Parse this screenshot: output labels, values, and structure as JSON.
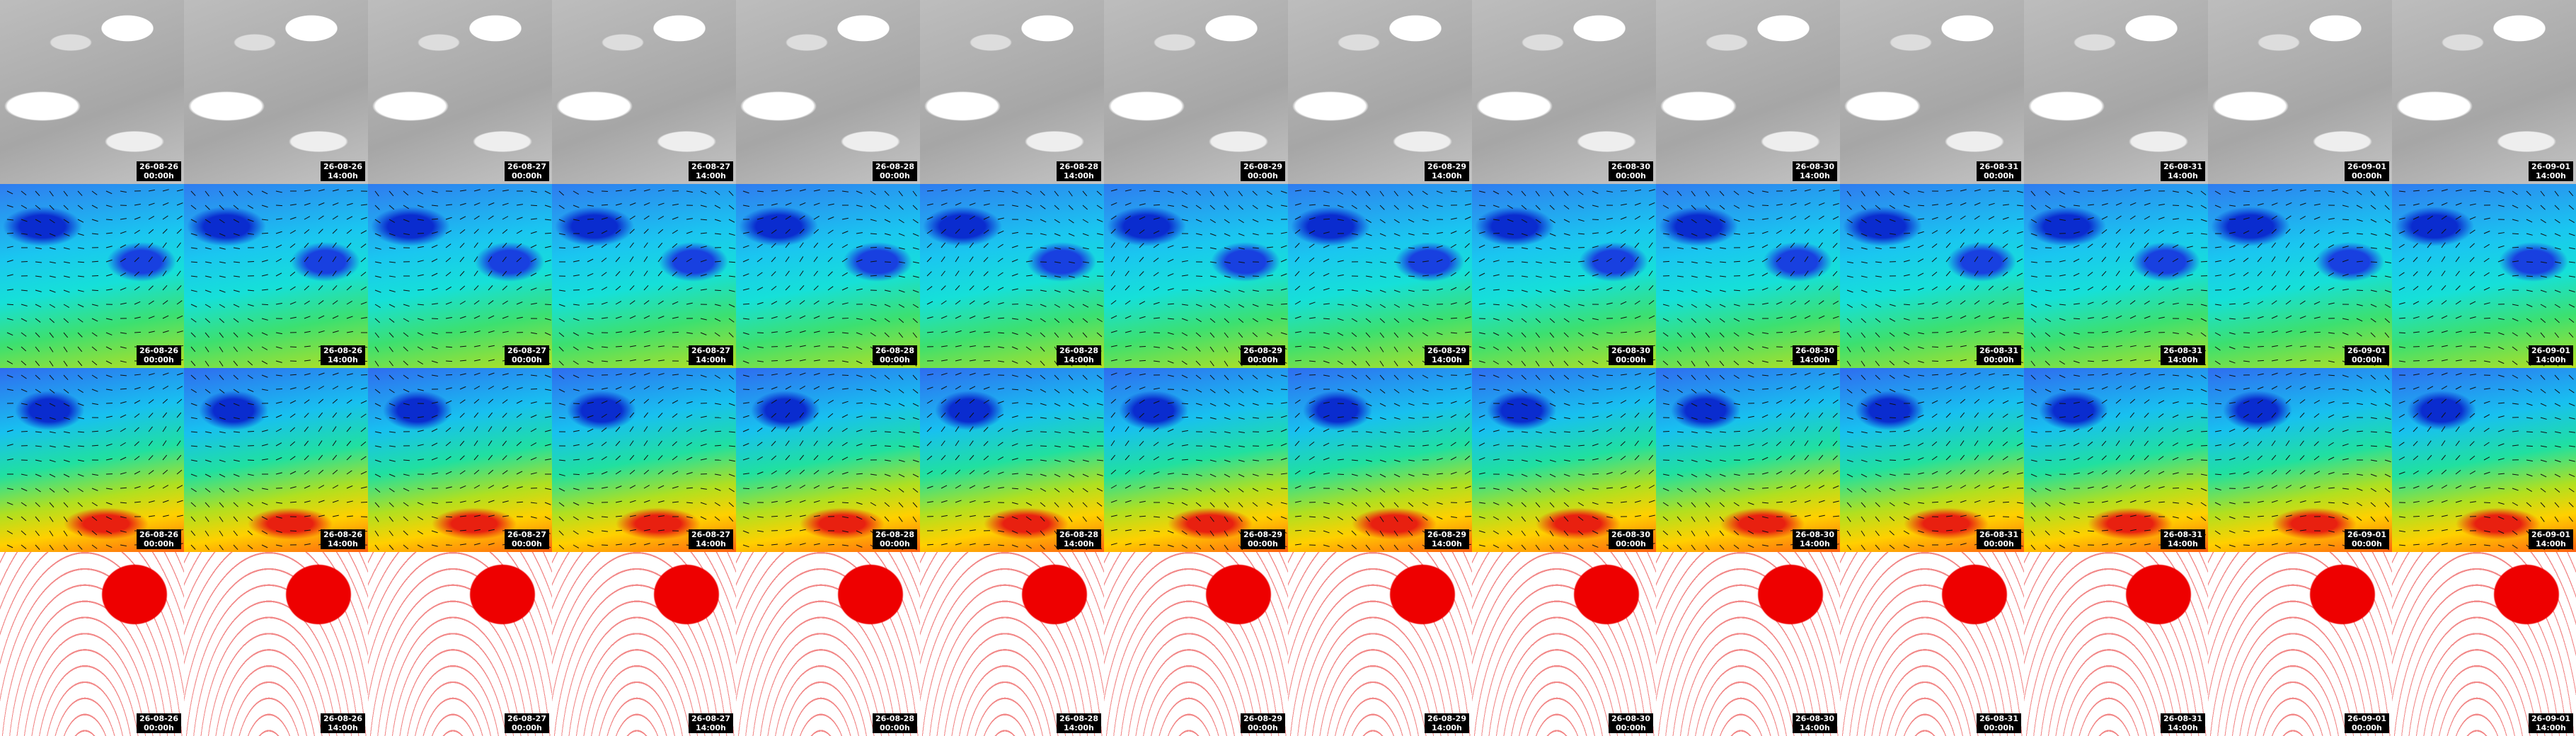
{
  "columns": [
    {
      "date": "26-08-26",
      "time": "00:00h"
    },
    {
      "date": "26-08-26",
      "time": "14:00h"
    },
    {
      "date": "26-08-27",
      "time": "00:00h"
    },
    {
      "date": "26-08-27",
      "time": "14:00h"
    },
    {
      "date": "26-08-28",
      "time": "00:00h"
    },
    {
      "date": "26-08-28",
      "time": "14:00h"
    },
    {
      "date": "26-08-29",
      "time": "00:00h"
    },
    {
      "date": "26-08-29",
      "time": "14:00h"
    },
    {
      "date": "26-08-30",
      "time": "00:00h"
    },
    {
      "date": "26-08-30",
      "time": "14:00h"
    },
    {
      "date": "26-08-31",
      "time": "00:00h"
    },
    {
      "date": "26-08-31",
      "time": "14:00h"
    },
    {
      "date": "26-09-01",
      "time": "00:00h"
    },
    {
      "date": "26-09-01",
      "time": "14:00h"
    }
  ]
}
